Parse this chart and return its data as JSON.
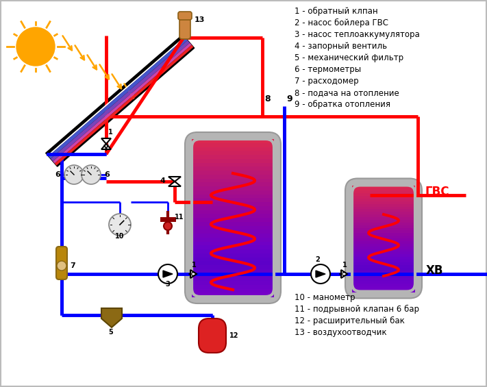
{
  "legend_right": [
    "1 - обратный клпан",
    "2 - насос бойлера ГВС",
    "3 - насос теплоаккумулятора",
    "4 - запорный вентиль",
    "5 - механический фильтр",
    "6 - термометры",
    "7 - расходомер",
    "8 - подача на отопление",
    "9 - обратка отопления"
  ],
  "legend_bottom": [
    "10 - манометр",
    "11 - подрывной клапан 6 бар",
    "12 - расширительный бак",
    "13 - воздухоотводчик"
  ],
  "red": "#ff0000",
  "blue": "#0000ff",
  "sun_color": "#FFA500",
  "pipe_lw": 3.5,
  "font_size": 8.5
}
